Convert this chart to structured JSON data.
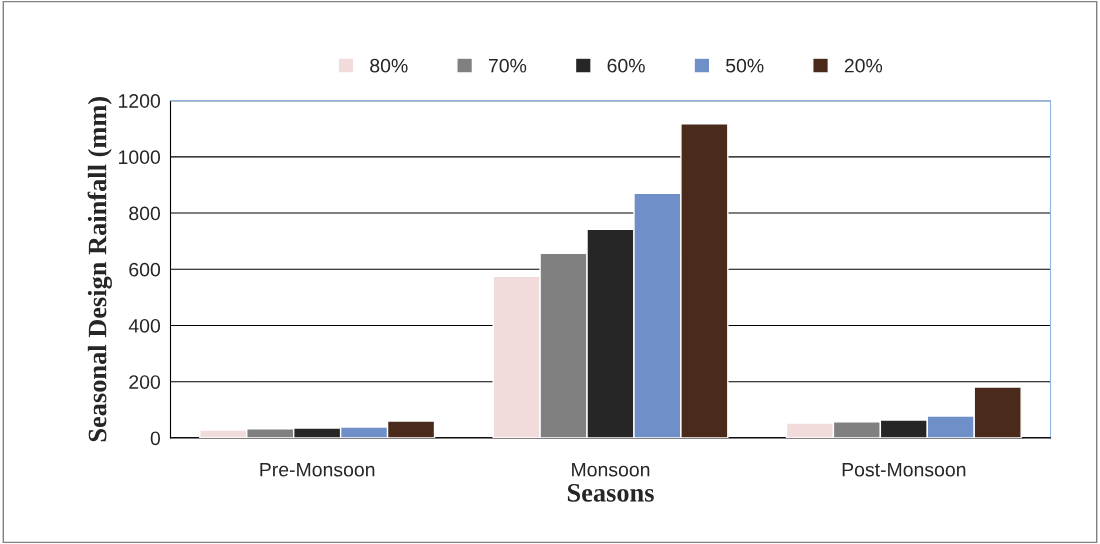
{
  "chart_data": {
    "type": "bar",
    "xlabel": "Seasons",
    "ylabel": "Seasonal Design Rainfall (mm)",
    "categories": [
      "Pre-Monsoon",
      "Monsoon",
      "Post-Monsoon"
    ],
    "series": [
      {
        "name": "80%",
        "color": "#f2dcdb",
        "values": [
          28,
          575,
          53
        ]
      },
      {
        "name": "70%",
        "color": "#808080",
        "values": [
          32,
          657,
          57
        ]
      },
      {
        "name": "60%",
        "color": "#262626",
        "values": [
          35,
          742,
          64
        ]
      },
      {
        "name": "50%",
        "color": "#6f8fc8",
        "values": [
          39,
          870,
          78
        ]
      },
      {
        "name": "20%",
        "color": "#4a2a1a",
        "values": [
          60,
          1118,
          181
        ]
      }
    ],
    "ylim": [
      0,
      1200
    ],
    "yticks": [
      0,
      200,
      400,
      600,
      800,
      1000,
      1200
    ],
    "grid": "y",
    "legend": "top"
  }
}
